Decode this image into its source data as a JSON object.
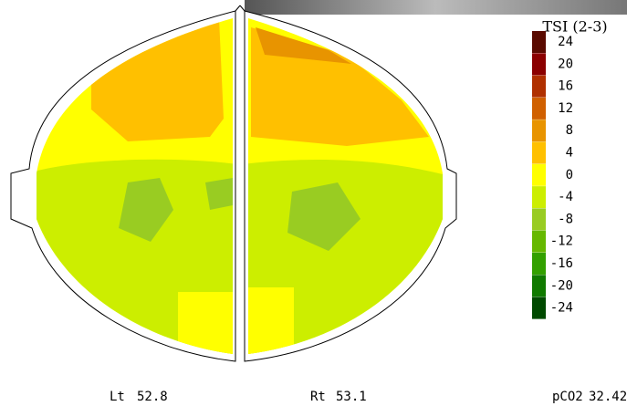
{
  "legend": {
    "title": "TSI (2-3)",
    "entries": [
      {
        "value": 24,
        "color": "#5a0a00"
      },
      {
        "value": 20,
        "color": "#8b0000"
      },
      {
        "value": 16,
        "color": "#b03000"
      },
      {
        "value": 12,
        "color": "#d06000"
      },
      {
        "value": 8,
        "color": "#e89400"
      },
      {
        "value": 4,
        "color": "#ffc000"
      },
      {
        "value": 0,
        "color": "#ffff00"
      },
      {
        "value": -4,
        "color": "#ccee00"
      },
      {
        "value": -8,
        "color": "#99cc22"
      },
      {
        "value": -12,
        "color": "#66b800"
      },
      {
        "value": -16,
        "color": "#33a000"
      },
      {
        "value": -20,
        "color": "#107a00"
      },
      {
        "value": -24,
        "color": "#004a00"
      }
    ]
  },
  "footer": [
    {
      "label": "Lt",
      "value": 52.8
    },
    {
      "label": "Rt",
      "value": 53.1
    },
    {
      "label": "pCO2",
      "value": 32.42
    }
  ]
}
